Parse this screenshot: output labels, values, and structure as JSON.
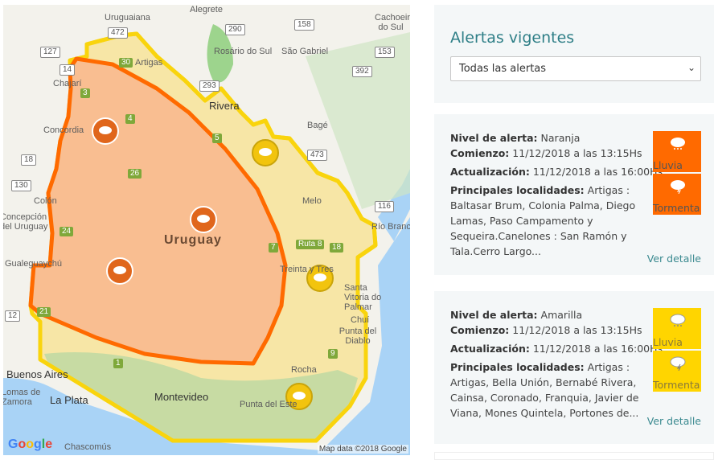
{
  "map": {
    "labels": [
      "Uruguaiana",
      "Alegrete",
      "Rosário do Sul",
      "São Gabriel",
      "Cachoeira do Sul",
      "Artigas",
      "Rivera",
      "Bagé",
      "Concordia",
      "Chajarí",
      "Colón",
      "Concepción del Uruguay",
      "Gualeguaychú",
      "Melo",
      "Treinta y Tres",
      "Río Branco",
      "Santa Vitoria do Palmar",
      "Chuí",
      "Punta del Diablo",
      "Rocha",
      "Punta del Este",
      "Montevideo",
      "Buenos Aires",
      "Lomas de Zamora",
      "La Plata",
      "Chascomús"
    ],
    "country": "Uruguay",
    "routes": [
      "472",
      "127",
      "290",
      "158",
      "153",
      "392",
      "293",
      "14",
      "30",
      "3",
      "4",
      "26",
      "5",
      "18",
      "130",
      "473",
      "116",
      "24",
      "7",
      "Ruta 8",
      "18",
      "21",
      "1",
      "9",
      "12"
    ],
    "attribution": "Map data ©2018 Google",
    "logo": "Google",
    "colors": {
      "naranja": "#ff6a00",
      "amarilla": "#f9d40d"
    }
  },
  "panel": {
    "title": "Alertas vigentes",
    "select": {
      "value": "Todas las alertas"
    }
  },
  "alerts": [
    {
      "level_label": "Nivel de alerta:",
      "level": "Naranja",
      "start_label": "Comienzo:",
      "start": "11/12/2018 a las 13:15Hs",
      "update_label": "Actualización:",
      "update": "11/12/2018 a las 16:00Hs",
      "places_label": "Principales localidades:",
      "places": "Artigas : Baltasar Brum, Colonia Palma, Diego Lamas, Paso Campamento y Sequeira.Canelones : San Ramón y Tala.Cerro Largo...",
      "types": [
        {
          "label": "Lluvia",
          "icon": "rain-cloud-icon"
        },
        {
          "label": "Tormenta",
          "icon": "storm-cloud-icon"
        }
      ],
      "color": "#ff6a00",
      "link": "Ver detalle"
    },
    {
      "level_label": "Nivel de alerta:",
      "level": "Amarilla",
      "start_label": "Comienzo:",
      "start": "11/12/2018 a las 13:15Hs",
      "update_label": "Actualización:",
      "update": "11/12/2018 a las 16:00Hs",
      "places_label": "Principales localidades:",
      "places": "Artigas : Artigas, Bella Unión, Bernabé Rivera, Cainsa, Coronado, Franquia, Javier de Viana, Mones Quintela, Portones de...",
      "types": [
        {
          "label": "Lluvia",
          "icon": "rain-cloud-icon"
        },
        {
          "label": "Tormenta",
          "icon": "storm-cloud-icon"
        }
      ],
      "color": "#ffd500",
      "link": "Ver detalle"
    }
  ]
}
